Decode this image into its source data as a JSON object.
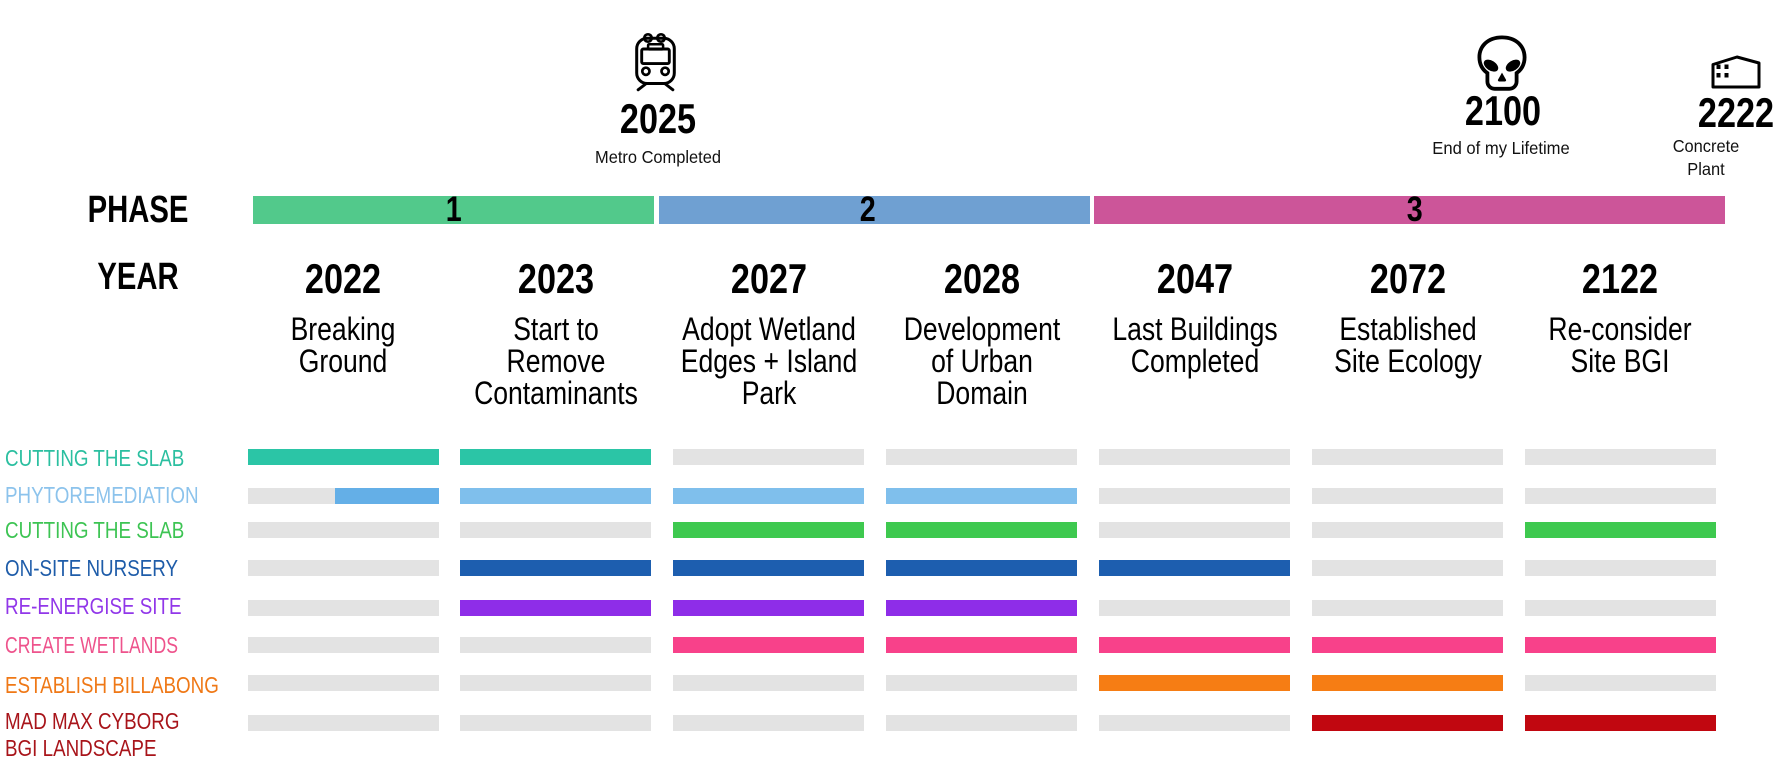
{
  "background_color": "#ffffff",
  "milestones": [
    {
      "icon": "train-icon",
      "year": "2025",
      "label_lines": [
        "Metro Completed"
      ]
    },
    {
      "icon": "skull-icon",
      "year": "2100",
      "label_lines": [
        "End of my Lifetime"
      ]
    },
    {
      "icon": "building-icon",
      "year": "2222",
      "label_lines": [
        "Concrete",
        "Plant"
      ]
    }
  ],
  "phase_row": {
    "label": "PHASE",
    "phases": [
      {
        "number": "1",
        "color": "#52C98B"
      },
      {
        "number": "2",
        "color": "#6FA0D2"
      },
      {
        "number": "3",
        "color": "#CC5599"
      }
    ]
  },
  "year_row": {
    "label": "YEAR",
    "years": [
      {
        "year": "2022",
        "desc_lines": [
          "Breaking",
          "Ground"
        ]
      },
      {
        "year": "2023",
        "desc_lines": [
          "Start to",
          "Remove",
          "Contaminants"
        ]
      },
      {
        "year": "2027",
        "desc_lines": [
          "Adopt Wetland",
          "Edges + Island",
          "Park"
        ]
      },
      {
        "year": "2028",
        "desc_lines": [
          "Development",
          "of Urban",
          "Domain"
        ]
      },
      {
        "year": "2047",
        "desc_lines": [
          "Last Buildings",
          "Completed"
        ]
      },
      {
        "year": "2072",
        "desc_lines": [
          "Established",
          "Site Ecology"
        ]
      },
      {
        "year": "2122",
        "desc_lines": [
          "Re-consider",
          "Site BGI"
        ]
      }
    ]
  },
  "chart_data": {
    "type": "gantt",
    "title": "",
    "columns": [
      "2022",
      "2023",
      "2027",
      "2028",
      "2047",
      "2072",
      "2122"
    ],
    "empty_color": "#E3E3E3",
    "rows": [
      {
        "label_lines": [
          "CUTTING THE SLAB"
        ],
        "label_color": "#2BBFA0",
        "bar_color": "#2BC5A6",
        "cells": [
          1,
          1,
          0,
          0,
          0,
          0,
          0
        ]
      },
      {
        "label_lines": [
          "PHYTOREMEDIATION"
        ],
        "label_color": "#8CC3EC",
        "bar_color": "#7FBFEC",
        "cells": [
          "partial",
          1,
          1,
          1,
          0,
          0,
          0
        ],
        "partial": {
          "start_fraction": 0.46,
          "color": "#64AFE7"
        }
      },
      {
        "label_lines": [
          "CUTTING THE SLAB"
        ],
        "label_color": "#3DC453",
        "bar_color": "#3EC94F",
        "cells": [
          0,
          0,
          1,
          1,
          0,
          0,
          1
        ]
      },
      {
        "label_lines": [
          "ON-SITE NURSERY"
        ],
        "label_color": "#1E5CA9",
        "bar_color": "#1D5EAF",
        "cells": [
          0,
          1,
          1,
          1,
          1,
          0,
          0
        ]
      },
      {
        "label_lines": [
          "RE-ENERGISE SITE"
        ],
        "label_color": "#9137E9",
        "bar_color": "#8E2DE8",
        "cells": [
          0,
          1,
          1,
          1,
          0,
          0,
          0
        ]
      },
      {
        "label_lines": [
          "CREATE WETLANDS"
        ],
        "label_color": "#EE538C",
        "bar_color": "#F8418A",
        "cells": [
          0,
          0,
          1,
          1,
          1,
          1,
          1
        ]
      },
      {
        "label_lines": [
          "ESTABLISH BILLABONG"
        ],
        "label_color": "#EF7816",
        "bar_color": "#F67D14",
        "cells": [
          0,
          0,
          0,
          0,
          1,
          1,
          0
        ]
      },
      {
        "label_lines": [
          "MAD MAX CYBORG",
          "BGI LANDSCAPE"
        ],
        "label_color": "#A8141A",
        "bar_color": "#C10710",
        "cells": [
          0,
          0,
          0,
          0,
          0,
          1,
          1
        ]
      }
    ]
  }
}
